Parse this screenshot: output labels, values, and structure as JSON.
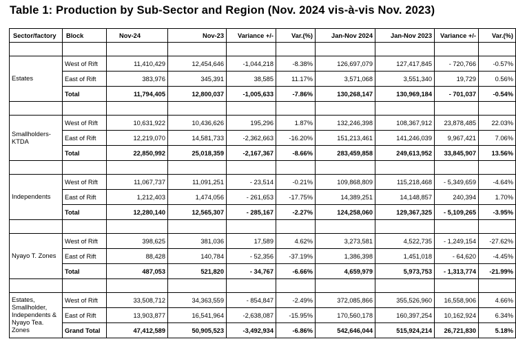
{
  "title": "Table 1: Production by Sub-Sector and Region (Nov. 2024 vis-à-vis Nov. 2023)",
  "columns": [
    "Sector/factory",
    "Block",
    "Nov-24",
    "Nov-23",
    "Variance +/-",
    "Var.(%)",
    "Jan-Nov 2024",
    "Jan-Nov 2023",
    "Variance +/-",
    "Var.(%)"
  ],
  "groups": [
    {
      "sector": "Estates",
      "rows": [
        {
          "block": "West of Rift",
          "cells": [
            "11,410,429",
            "12,454,646",
            "-1,044,218",
            "-8.38%",
            "126,697,079",
            "127,417,845",
            "-   720,766",
            "-0.57%"
          ]
        },
        {
          "block": "East of Rift",
          "cells": [
            "383,976",
            "345,391",
            "38,585",
            "11.17%",
            "3,571,068",
            "3,551,340",
            "19,729",
            "0.56%"
          ]
        },
        {
          "block": "Total",
          "cells": [
            "11,794,405",
            "12,800,037",
            "-1,005,633",
            "-7.86%",
            "130,268,147",
            "130,969,184",
            "-   701,037",
            "-0.54%"
          ]
        }
      ]
    },
    {
      "sector": "Smallholders-KTDA",
      "rows": [
        {
          "block": "West of Rift",
          "cells": [
            "10,631,922",
            "10,436,626",
            "195,296",
            "1.87%",
            "132,246,398",
            "108,367,912",
            "23,878,485",
            "22.03%"
          ]
        },
        {
          "block": "East of Rift",
          "cells": [
            "12,219,070",
            "14,581,733",
            "-2,362,663",
            "-16.20%",
            "151,213,461",
            "141,246,039",
            "9,967,421",
            "7.06%"
          ]
        },
        {
          "block": "Total",
          "cells": [
            "22,850,992",
            "25,018,359",
            "-2,167,367",
            "-8.66%",
            "283,459,858",
            "249,613,952",
            "33,845,907",
            "13.56%"
          ]
        }
      ]
    },
    {
      "sector": "Independents",
      "rows": [
        {
          "block": "West of Rift",
          "cells": [
            "11,067,737",
            "11,091,251",
            "-     23,514",
            "-0.21%",
            "109,868,809",
            "115,218,468",
            "- 5,349,659",
            "-4.64%"
          ]
        },
        {
          "block": "East of Rift",
          "cells": [
            "1,212,403",
            "1,474,056",
            "-   261,653",
            "-17.75%",
            "14,389,251",
            "14,148,857",
            "240,394",
            "1.70%"
          ]
        },
        {
          "block": "Total",
          "cells": [
            "12,280,140",
            "12,565,307",
            "-   285,167",
            "-2.27%",
            "124,258,060",
            "129,367,325",
            "- 5,109,265",
            "-3.95%"
          ]
        }
      ]
    },
    {
      "sector": "Nyayo T. Zones",
      "rows": [
        {
          "block": "West of Rift",
          "cells": [
            "398,625",
            "381,036",
            "17,589",
            "4.62%",
            "3,273,581",
            "4,522,735",
            "- 1,249,154",
            "-27.62%"
          ]
        },
        {
          "block": "East of Rift",
          "cells": [
            "88,428",
            "140,784",
            "-     52,356",
            "-37.19%",
            "1,386,398",
            "1,451,018",
            "-     64,620",
            "-4.45%"
          ]
        },
        {
          "block": "Total",
          "cells": [
            "487,053",
            "521,820",
            "-     34,767",
            "-6.66%",
            "4,659,979",
            "5,973,753",
            "- 1,313,774",
            "-21.99%"
          ]
        }
      ]
    },
    {
      "sector": "Estates, Smallholder, Independents & Nyayo Tea. Zones",
      "rows": [
        {
          "block": "West of Rift",
          "cells": [
            "33,508,712",
            "34,363,559",
            "-   854,847",
            "-2.49%",
            "372,085,866",
            "355,526,960",
            "16,558,906",
            "4.66%"
          ]
        },
        {
          "block": "East of Rift",
          "cells": [
            "13,903,877",
            "16,541,964",
            "-2,638,087",
            "-15.95%",
            "170,560,178",
            "160,397,254",
            "10,162,924",
            "6.34%"
          ]
        },
        {
          "block": "Grand Total",
          "cells": [
            "47,412,589",
            "50,905,523",
            "-3,492,934",
            "-6.86%",
            "542,646,044",
            "515,924,214",
            "26,721,830",
            "5.18%"
          ]
        }
      ]
    }
  ]
}
